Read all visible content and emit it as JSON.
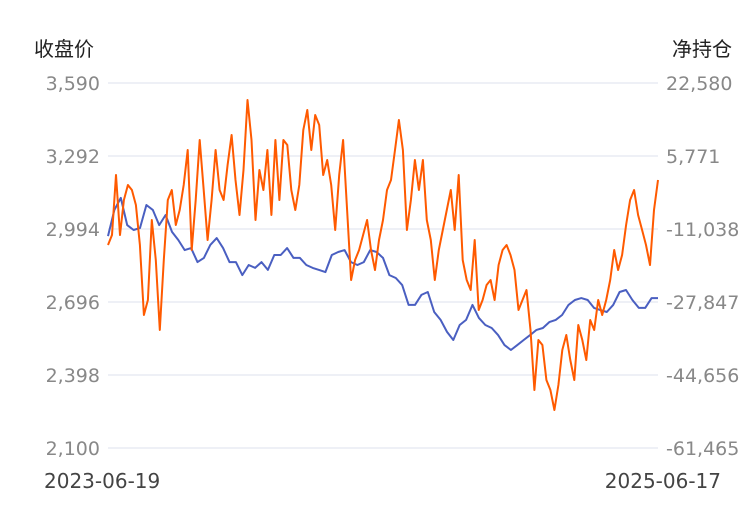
{
  "chart_data": {
    "type": "line",
    "left_axis_title": "收盘价",
    "right_axis_title": "净持仓",
    "x_start_label": "2023-06-19",
    "x_end_label": "2025-06-17",
    "left_ylim": [
      2100,
      3590
    ],
    "left_ticks": [
      "3,590",
      "3,292",
      "2,994",
      "2,696",
      "2,398",
      "2,100"
    ],
    "right_ylim": [
      -61465,
      22580
    ],
    "right_ticks": [
      "22,580",
      "5,771",
      "-11,038",
      "-27,847",
      "-44,656",
      "-61,465"
    ],
    "grid": true,
    "series": [
      {
        "name": "收盘价",
        "axis": "left",
        "color": "#4a5fc1",
        "values": [
          2965,
          3072,
          3121,
          3010,
          2990,
          2998,
          3092,
          3072,
          3010,
          3051,
          2982,
          2949,
          2908,
          2916,
          2859,
          2876,
          2929,
          2957,
          2916,
          2859,
          2859,
          2806,
          2847,
          2835,
          2859,
          2827,
          2888,
          2888,
          2916,
          2876,
          2876,
          2847,
          2835,
          2827,
          2818,
          2888,
          2900,
          2908,
          2859,
          2847,
          2859,
          2908,
          2900,
          2876,
          2806,
          2794,
          2765,
          2684,
          2684,
          2725,
          2737,
          2655,
          2623,
          2574,
          2541,
          2602,
          2623,
          2684,
          2631,
          2602,
          2590,
          2561,
          2520,
          2500,
          2520,
          2541,
          2561,
          2582,
          2590,
          2614,
          2623,
          2643,
          2684,
          2704,
          2712,
          2704,
          2672,
          2663,
          2655,
          2684,
          2737,
          2745,
          2704,
          2672,
          2672,
          2712,
          2712
        ]
      },
      {
        "name": "净持仓",
        "axis": "right",
        "color": "#ff5a00",
        "values": [
          -14722,
          -12420,
          1396,
          -12420,
          -4360,
          -907,
          -2058,
          -5512,
          -14722,
          -30840,
          -27386,
          -8966,
          -18176,
          -34294,
          -18176,
          -4360,
          -2058,
          -10117,
          -6663,
          -907,
          7153,
          -15873,
          -4360,
          9455,
          -2058,
          -13571,
          -4360,
          7153,
          -2058,
          -4360,
          3699,
          10606,
          245,
          -7814,
          2547,
          18666,
          9455,
          -8966,
          2547,
          -2058,
          7153,
          -7814,
          9455,
          -4360,
          9455,
          8304,
          -2058,
          -6663,
          -907,
          11758,
          16363,
          7153,
          15212,
          12909,
          1396,
          4850,
          -907,
          -11268,
          1396,
          9455,
          -6663,
          -22781,
          -18176,
          -15873,
          -12420,
          -8966,
          -15873,
          -20479,
          -13571,
          -8966,
          -2058,
          245,
          7153,
          14060,
          7153,
          -11268,
          -4360,
          4850,
          -2058,
          4850,
          -8966,
          -13571,
          -22781,
          -15873,
          -11268,
          -6663,
          -2058,
          -11268,
          1396,
          -18176,
          -22781,
          -25084,
          -13571,
          -29689,
          -27386,
          -23933,
          -22781,
          -27386,
          -19327,
          -15873,
          -14722,
          -17025,
          -20479,
          -29689,
          -27386,
          -25084,
          -34294,
          -48110,
          -36597,
          -37748,
          -45807,
          -48110,
          -52715,
          -46959,
          -38899,
          -35446,
          -41202,
          -45807,
          -33143,
          -36597,
          -41202,
          -31992,
          -34294,
          -27386,
          -30840,
          -27386,
          -22781,
          -15873,
          -20479,
          -17025,
          -10117,
          -4360,
          -2058,
          -7814,
          -11268,
          -14722,
          -19327,
          -6663,
          245
        ]
      }
    ]
  }
}
